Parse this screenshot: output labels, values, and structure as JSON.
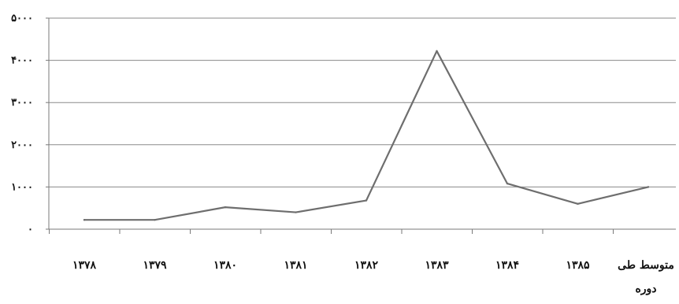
{
  "chart_data": {
    "type": "line",
    "title": "",
    "xlabel": "",
    "ylabel": "",
    "categories": [
      "۱۳۷۸",
      "۱۳۷۹",
      "۱۳۸۰",
      "۱۳۸۱",
      "۱۳۸۲",
      "۱۳۸۳",
      "۱۳۸۴",
      "۱۳۸۵",
      "متوسط طی دوره"
    ],
    "category_lines": [
      [
        "۱۳۷۸"
      ],
      [
        "۱۳۷۹"
      ],
      [
        "۱۳۸۰"
      ],
      [
        "۱۳۸۱"
      ],
      [
        "۱۳۸۲"
      ],
      [
        "۱۳۸۳"
      ],
      [
        "۱۳۸۴"
      ],
      [
        "۱۳۸۵"
      ],
      [
        "متوسط طی",
        "دوره"
      ]
    ],
    "series": [
      {
        "values": [
          220,
          220,
          520,
          400,
          680,
          4220,
          1080,
          600,
          1000
        ]
      }
    ],
    "ylim": [
      0,
      5000
    ],
    "yticks": [
      0,
      1000,
      2000,
      3000,
      4000,
      5000
    ],
    "ytick_labels": [
      "۰",
      "۱۰۰۰",
      "۲۰۰۰",
      "۳۰۰۰",
      "۴۰۰۰",
      "۵۰۰۰"
    ],
    "grid": true,
    "legend": "none",
    "colors": {
      "line": "#6e6e6e",
      "grid": "#8a8a8a",
      "text": "#111111"
    }
  }
}
